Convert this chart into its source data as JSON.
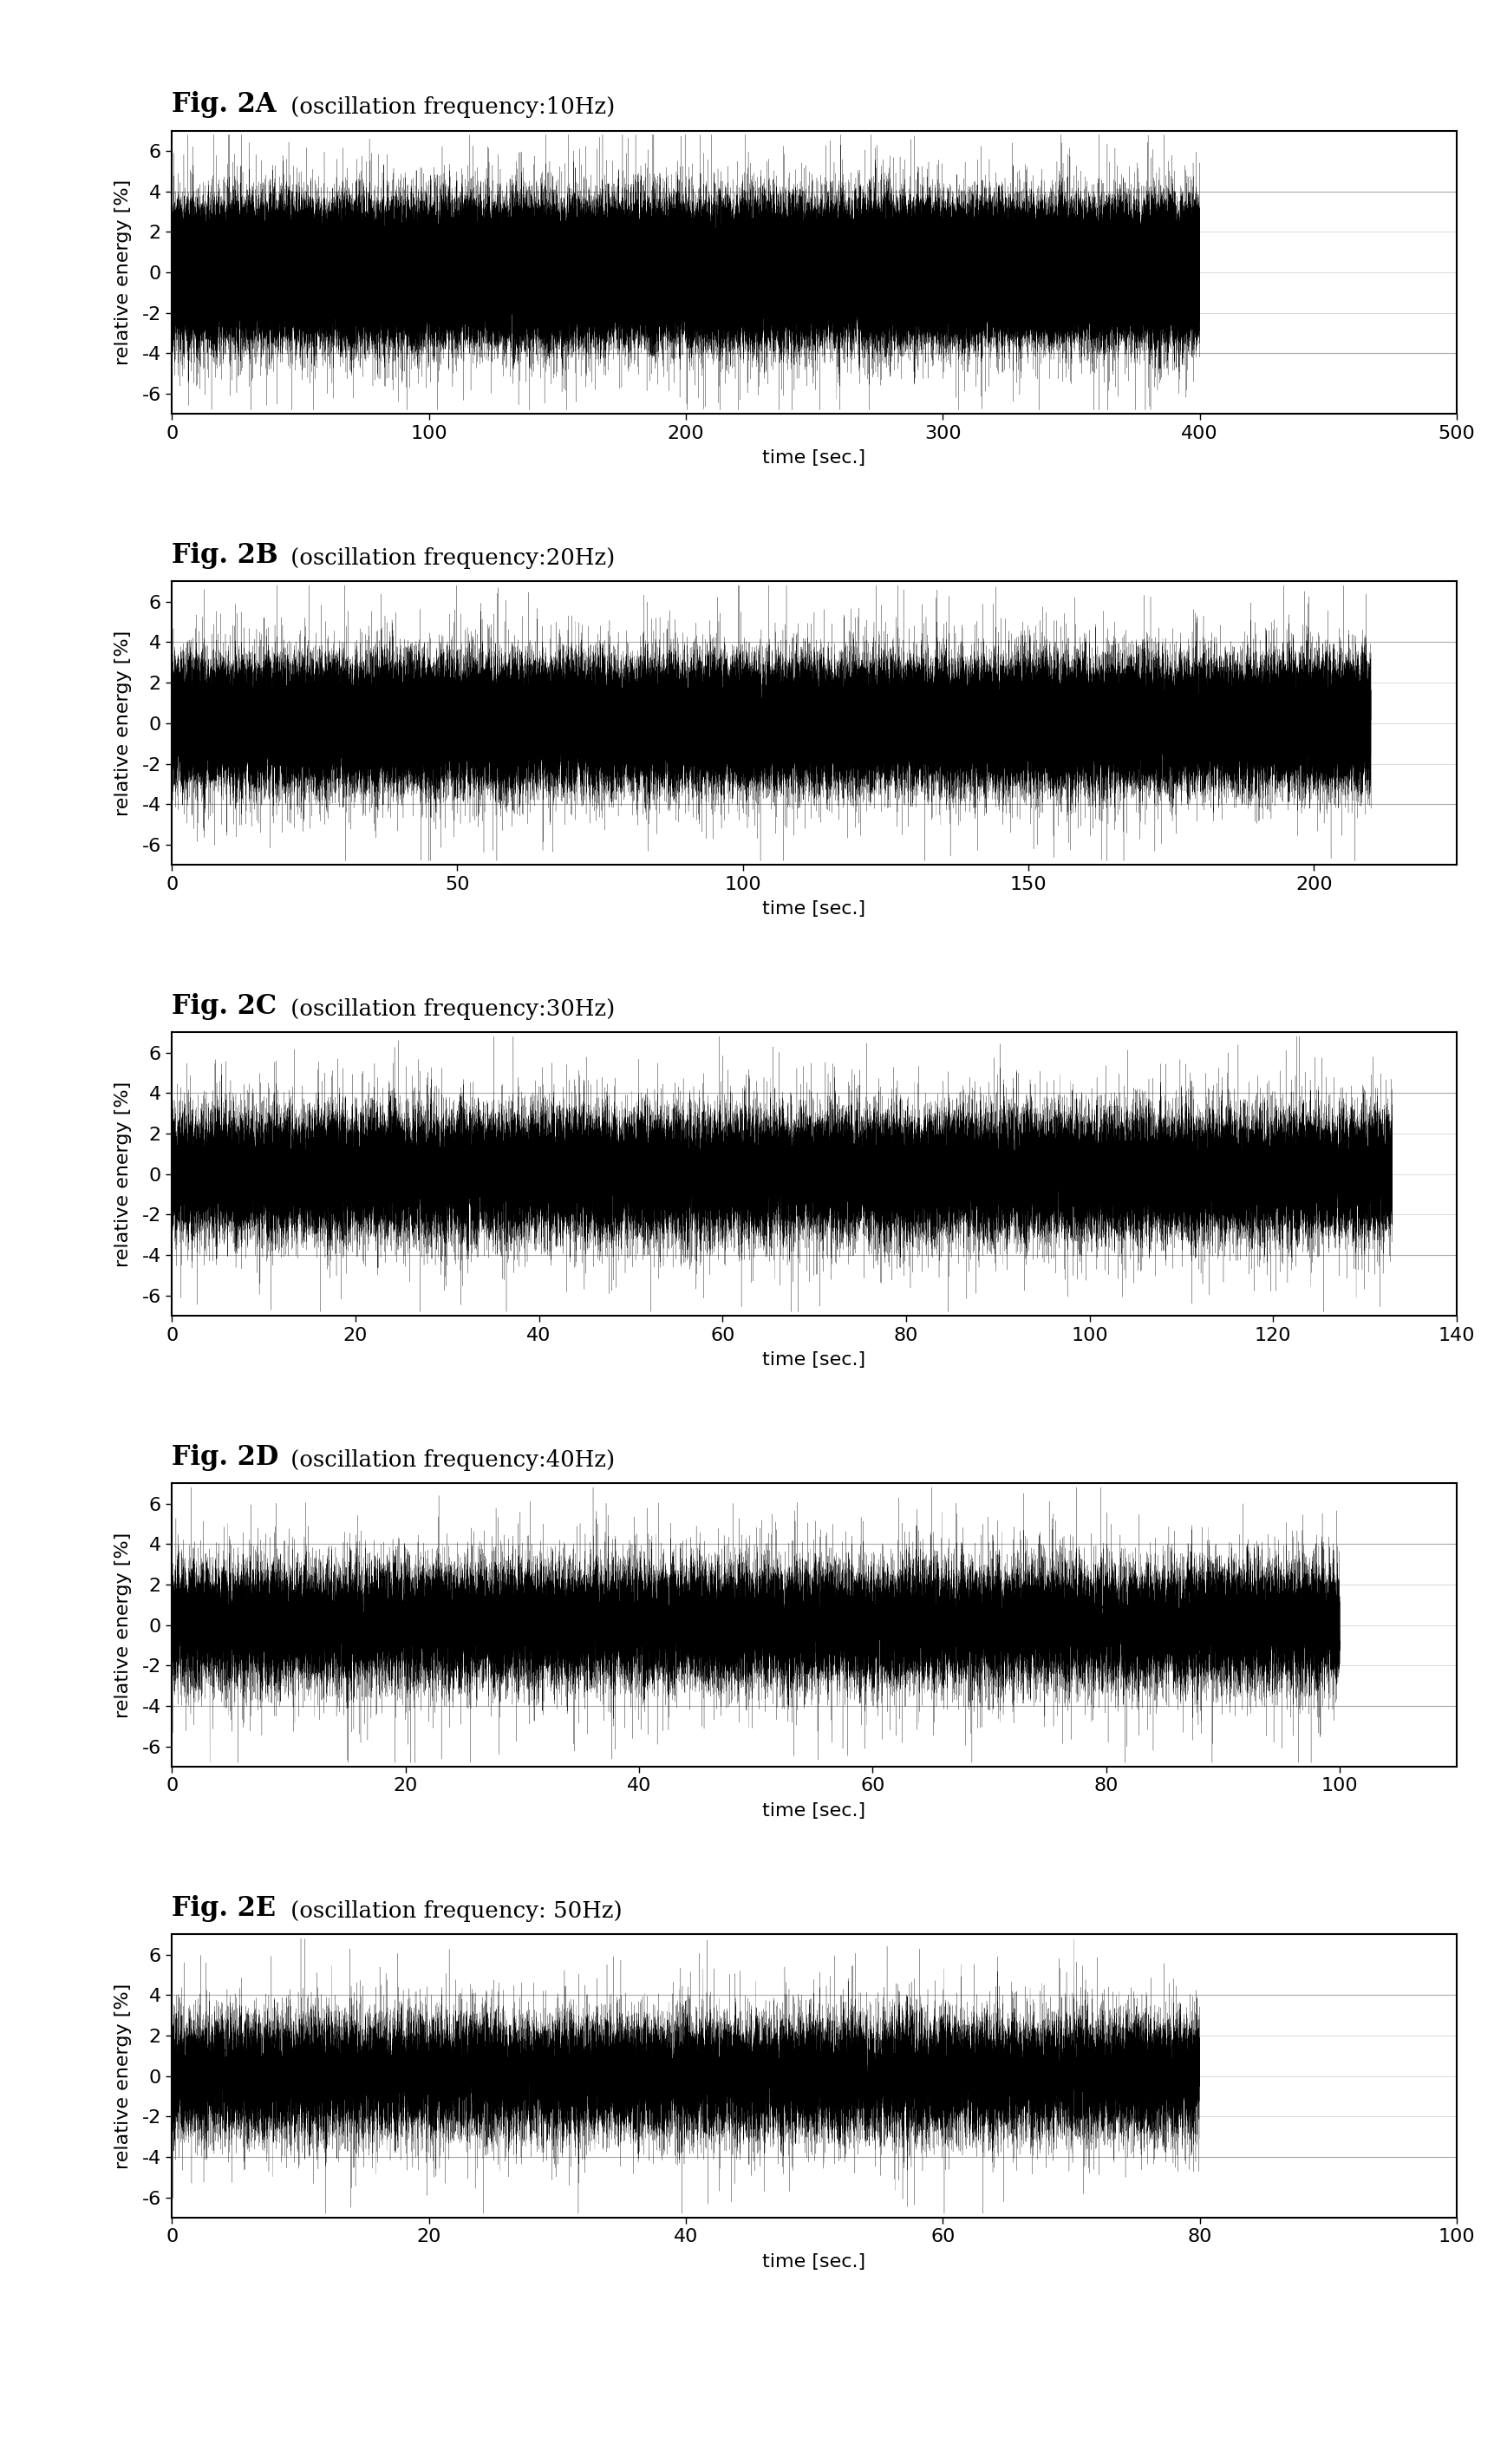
{
  "panels": [
    {
      "title": "Fig. 2A",
      "subtitle": " (oscillation frequency:10Hz)",
      "xmax": 500,
      "xticks": [
        0,
        100,
        200,
        300,
        400,
        500
      ],
      "signal_end": 400,
      "points_per_sec": 500,
      "noise_std": 1.5,
      "spike_prob": 0.008,
      "spike_mag": 2.5,
      "spike_mag2": 4.5
    },
    {
      "title": "Fig. 2B",
      "subtitle": " (oscillation frequency:20Hz)",
      "xmax": 225,
      "xticks": [
        0,
        50,
        100,
        150,
        200
      ],
      "signal_end": 210,
      "points_per_sec": 500,
      "noise_std": 1.5,
      "spike_prob": 0.008,
      "spike_mag": 2.5,
      "spike_mag2": 4.5
    },
    {
      "title": "Fig. 2C",
      "subtitle": " (oscillation frequency:30Hz)",
      "xmax": 140,
      "xticks": [
        0,
        20,
        40,
        60,
        80,
        100,
        120,
        140
      ],
      "signal_end": 133,
      "points_per_sec": 500,
      "noise_std": 1.5,
      "spike_prob": 0.01,
      "spike_mag": 2.5,
      "spike_mag2": 4.5
    },
    {
      "title": "Fig. 2D",
      "subtitle": " (oscillation frequency:40Hz)",
      "xmax": 110,
      "xticks": [
        0,
        20,
        40,
        60,
        80,
        100
      ],
      "signal_end": 100,
      "points_per_sec": 500,
      "noise_std": 1.5,
      "spike_prob": 0.01,
      "spike_mag": 2.5,
      "spike_mag2": 4.5
    },
    {
      "title": "Fig. 2E",
      "subtitle": " (oscillation frequency: 50Hz)",
      "xmax": 100,
      "xticks": [
        0,
        20,
        40,
        60,
        80,
        100
      ],
      "signal_end": 80,
      "points_per_sec": 500,
      "noise_std": 1.5,
      "spike_prob": 0.01,
      "spike_mag": 2.5,
      "spike_mag2": 4.5
    }
  ],
  "ylim": [
    -7,
    7
  ],
  "yticks": [
    -6,
    -4,
    -2,
    0,
    2,
    4,
    6
  ],
  "ylabel": "relative energy [%]",
  "xlabel": "time [sec.]",
  "bg_color": "#ffffff",
  "signal_color": "#000000",
  "grid_color": "#aaaaaa",
  "title_fontsize": 22,
  "label_fontsize": 16,
  "tick_fontsize": 16
}
